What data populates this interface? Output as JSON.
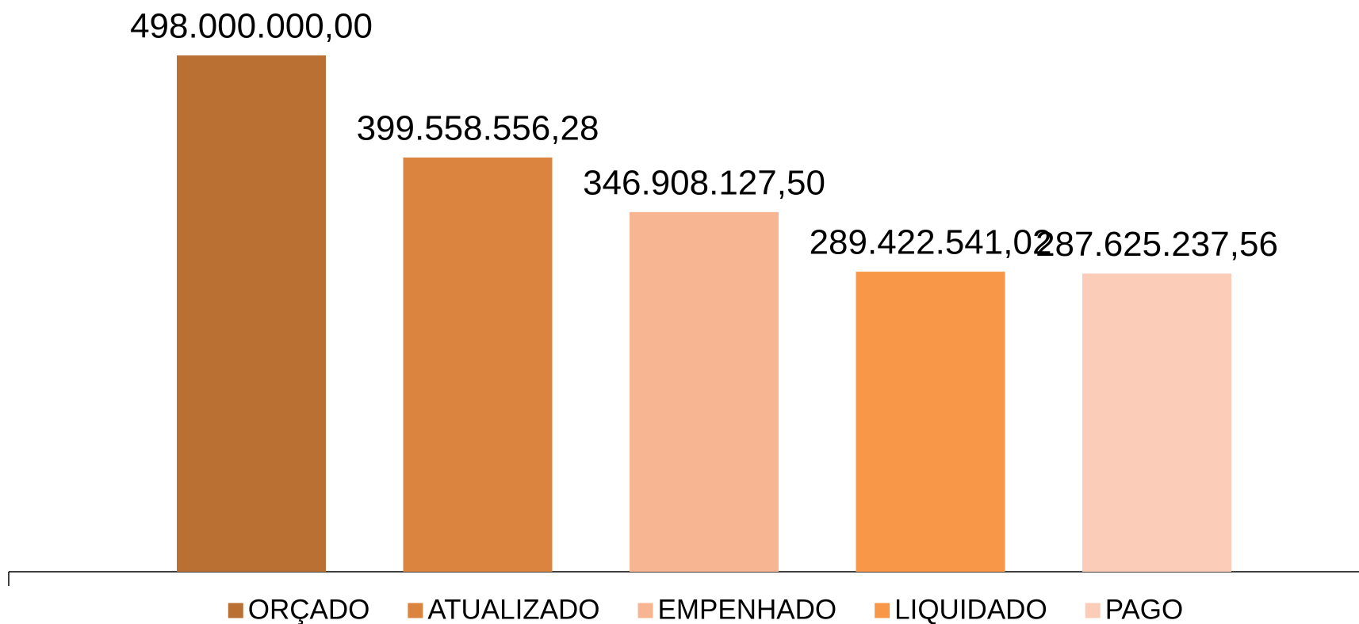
{
  "chart_data": {
    "type": "bar",
    "categories": [
      null
    ],
    "series": [
      {
        "name": "ORÇADO",
        "color": "#BA7033",
        "values": [
          498000000
        ],
        "value_labels": [
          "498.000.000,00"
        ]
      },
      {
        "name": "ATUALIZADO",
        "color": "#DB843F",
        "values": [
          399558556.28
        ],
        "value_labels": [
          "399.558.556,28"
        ]
      },
      {
        "name": "EMPENHADO",
        "color": "#F8B592",
        "values": [
          346908127.5
        ],
        "value_labels": [
          "346.908.127,50"
        ]
      },
      {
        "name": "LIQUIDADO",
        "color": "#F79747",
        "values": [
          289422541.02
        ],
        "value_labels": [
          "289.422.541,02"
        ]
      },
      {
        "name": "PAGO",
        "color": "#FBCDB8",
        "values": [
          287625237.56
        ],
        "value_labels": [
          "287.625.237,56"
        ]
      }
    ],
    "legend": "bottom"
  }
}
